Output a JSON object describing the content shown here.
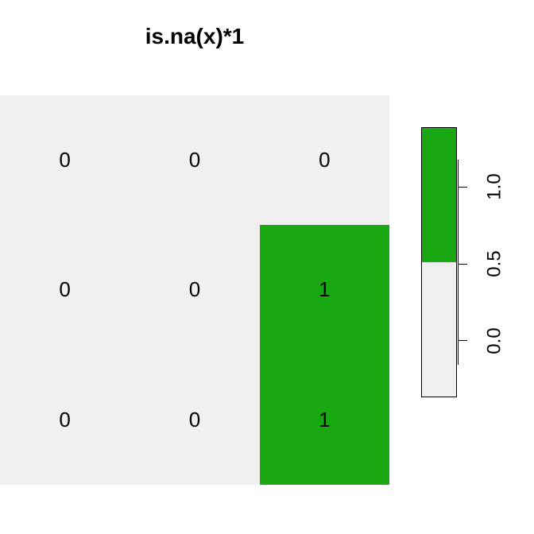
{
  "chart": {
    "type": "heatmap",
    "title": "is.na(x)*1",
    "title_fontsize": 28,
    "title_fontweight": "bold",
    "rows": 3,
    "cols": 3,
    "values": [
      [
        0,
        0,
        0
      ],
      [
        0,
        0,
        1
      ],
      [
        0,
        0,
        1
      ]
    ],
    "color_low": "#f0f0f0",
    "color_high": "#19a712",
    "cell_label_fontsize": 26,
    "cell_label_color": "#000000",
    "background_color": "#ffffff"
  },
  "legend": {
    "blocks": [
      {
        "color": "#19a712",
        "fraction": 0.5
      },
      {
        "color": "#f0f0f0",
        "fraction": 0.5
      }
    ],
    "ticks": [
      {
        "label": "1.0",
        "position": 0.215
      },
      {
        "label": "0.5",
        "position": 0.5
      },
      {
        "label": "0.0",
        "position": 0.785
      }
    ],
    "tick_fontsize": 24,
    "axis_top_fraction": 0.12,
    "axis_bottom_fraction": 0.88
  }
}
